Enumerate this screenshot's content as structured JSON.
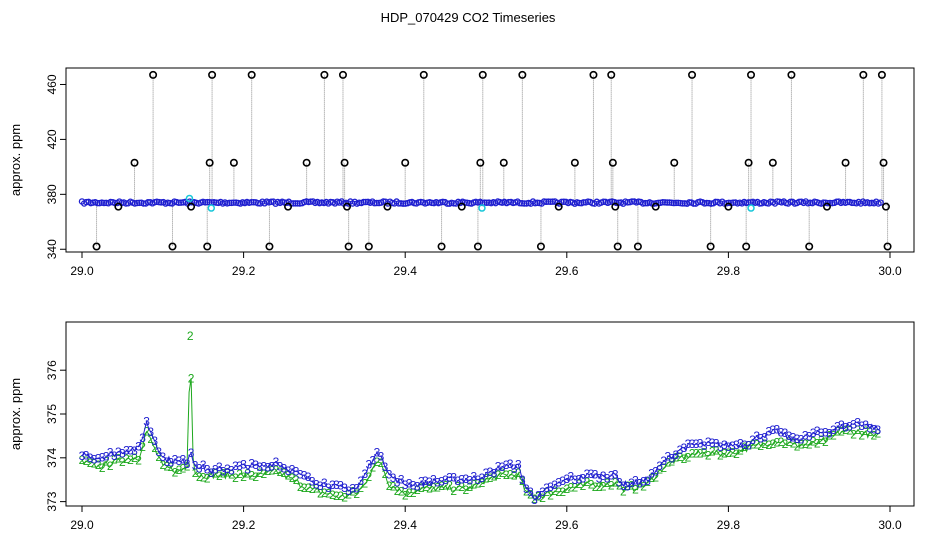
{
  "title": "HDP_070429  CO2 Timeseries",
  "colors": {
    "level3": "#1f1fd0",
    "level2": "#1ea81e",
    "cyan": "#19c7d9",
    "spike_line": "#909090",
    "outlier": "#000000"
  },
  "chart_data": [
    {
      "type": "scatter",
      "ylabel": "approx. ppm",
      "xlim": [
        29.0,
        30.0
      ],
      "ylim": [
        338,
        472
      ],
      "xticks": [
        "29.0",
        "29.2",
        "29.4",
        "29.6",
        "29.8",
        "30.0"
      ],
      "yticks": [
        "340",
        "380",
        "420",
        "460"
      ],
      "baseline_ppm": 374,
      "outliers": [
        {
          "x": 29.018,
          "y": 342
        },
        {
          "x": 29.045,
          "y": 371
        },
        {
          "x": 29.065,
          "y": 403
        },
        {
          "x": 29.088,
          "y": 467
        },
        {
          "x": 29.112,
          "y": 342
        },
        {
          "x": 29.135,
          "y": 371
        },
        {
          "x": 29.155,
          "y": 342
        },
        {
          "x": 29.158,
          "y": 403
        },
        {
          "x": 29.161,
          "y": 467
        },
        {
          "x": 29.188,
          "y": 403
        },
        {
          "x": 29.21,
          "y": 467
        },
        {
          "x": 29.232,
          "y": 342
        },
        {
          "x": 29.255,
          "y": 371
        },
        {
          "x": 29.278,
          "y": 403
        },
        {
          "x": 29.3,
          "y": 467
        },
        {
          "x": 29.323,
          "y": 467
        },
        {
          "x": 29.325,
          "y": 403
        },
        {
          "x": 29.328,
          "y": 371
        },
        {
          "x": 29.33,
          "y": 342
        },
        {
          "x": 29.355,
          "y": 342
        },
        {
          "x": 29.378,
          "y": 371
        },
        {
          "x": 29.4,
          "y": 403
        },
        {
          "x": 29.423,
          "y": 467
        },
        {
          "x": 29.445,
          "y": 342
        },
        {
          "x": 29.47,
          "y": 371
        },
        {
          "x": 29.49,
          "y": 342
        },
        {
          "x": 29.493,
          "y": 403
        },
        {
          "x": 29.496,
          "y": 467
        },
        {
          "x": 29.522,
          "y": 403
        },
        {
          "x": 29.545,
          "y": 467
        },
        {
          "x": 29.568,
          "y": 342
        },
        {
          "x": 29.59,
          "y": 371
        },
        {
          "x": 29.61,
          "y": 403
        },
        {
          "x": 29.633,
          "y": 467
        },
        {
          "x": 29.655,
          "y": 467
        },
        {
          "x": 29.657,
          "y": 403
        },
        {
          "x": 29.66,
          "y": 371
        },
        {
          "x": 29.663,
          "y": 342
        },
        {
          "x": 29.688,
          "y": 342
        },
        {
          "x": 29.71,
          "y": 371
        },
        {
          "x": 29.733,
          "y": 403
        },
        {
          "x": 29.755,
          "y": 467
        },
        {
          "x": 29.778,
          "y": 342
        },
        {
          "x": 29.8,
          "y": 371
        },
        {
          "x": 29.822,
          "y": 342
        },
        {
          "x": 29.825,
          "y": 403
        },
        {
          "x": 29.828,
          "y": 467
        },
        {
          "x": 29.855,
          "y": 403
        },
        {
          "x": 29.878,
          "y": 467
        },
        {
          "x": 29.9,
          "y": 342
        },
        {
          "x": 29.922,
          "y": 371
        },
        {
          "x": 29.945,
          "y": 403
        },
        {
          "x": 29.967,
          "y": 467
        },
        {
          "x": 29.99,
          "y": 467
        },
        {
          "x": 29.992,
          "y": 403
        },
        {
          "x": 29.995,
          "y": 371
        },
        {
          "x": 29.997,
          "y": 342
        }
      ],
      "cyan_points": [
        {
          "x": 29.133,
          "y": 377
        },
        {
          "x": 29.16,
          "y": 370
        },
        {
          "x": 29.495,
          "y": 370
        },
        {
          "x": 29.828,
          "y": 370
        }
      ]
    },
    {
      "type": "line",
      "ylabel": "approx. ppm",
      "xlim": [
        29.0,
        30.0
      ],
      "ylim": [
        372.9,
        377.1
      ],
      "xticks": [
        "29.0",
        "29.2",
        "29.4",
        "29.6",
        "29.8",
        "30.0"
      ],
      "yticks": [
        "373",
        "374",
        "375",
        "376"
      ],
      "series": [
        {
          "marker": "3",
          "x": [
            29.0,
            29.02,
            29.04,
            29.06,
            29.07,
            29.08,
            29.1,
            29.12,
            29.13,
            29.134,
            29.138,
            29.145,
            29.16,
            29.2,
            29.22,
            29.24,
            29.26,
            29.28,
            29.3,
            29.32,
            29.34,
            29.35,
            29.36,
            29.37,
            29.38,
            29.4,
            29.42,
            29.45,
            29.48,
            29.5,
            29.52,
            29.54,
            29.55,
            29.56,
            29.58,
            29.6,
            29.63,
            29.66,
            29.67,
            29.68,
            29.7,
            29.72,
            29.74,
            29.76,
            29.8,
            29.82,
            29.84,
            29.86,
            29.88,
            29.9,
            29.92,
            29.94,
            29.96,
            29.98,
            29.99
          ],
          "y": [
            374.1,
            374.0,
            374.1,
            374.2,
            374.2,
            374.8,
            374.0,
            373.9,
            373.9,
            374.2,
            373.9,
            373.8,
            373.7,
            373.8,
            373.8,
            373.9,
            373.7,
            373.5,
            373.4,
            373.3,
            373.3,
            373.6,
            374.0,
            374.1,
            373.6,
            373.4,
            373.4,
            373.5,
            373.5,
            373.6,
            373.8,
            373.8,
            373.3,
            373.1,
            373.3,
            373.5,
            373.6,
            373.6,
            373.4,
            373.4,
            373.5,
            373.9,
            374.2,
            374.3,
            374.3,
            374.3,
            374.5,
            374.6,
            374.4,
            374.5,
            374.6,
            374.7,
            374.8,
            374.7,
            374.6
          ]
        },
        {
          "marker": "2",
          "x": [
            29.0,
            29.02,
            29.04,
            29.06,
            29.07,
            29.08,
            29.1,
            29.12,
            29.13,
            29.134,
            29.138,
            29.145,
            29.16,
            29.2,
            29.22,
            29.24,
            29.26,
            29.28,
            29.3,
            29.32,
            29.34,
            29.35,
            29.36,
            29.37,
            29.38,
            29.4,
            29.42,
            29.45,
            29.48,
            29.5,
            29.52,
            29.54,
            29.55,
            29.56,
            29.58,
            29.6,
            29.63,
            29.66,
            29.67,
            29.68,
            29.7,
            29.72,
            29.74,
            29.76,
            29.8,
            29.82,
            29.84,
            29.86,
            29.88,
            29.9,
            29.92,
            29.94,
            29.96,
            29.98,
            29.99
          ],
          "y": [
            373.9,
            373.8,
            373.9,
            374.0,
            374.0,
            374.6,
            373.8,
            373.7,
            373.8,
            376.6,
            373.7,
            373.6,
            373.6,
            373.6,
            373.6,
            373.7,
            373.5,
            373.3,
            373.2,
            373.1,
            373.2,
            373.4,
            373.8,
            373.9,
            373.4,
            373.2,
            373.3,
            373.3,
            373.3,
            373.5,
            373.6,
            373.6,
            373.2,
            373.1,
            373.2,
            373.3,
            373.4,
            373.4,
            373.3,
            373.3,
            373.4,
            373.8,
            374.0,
            374.1,
            374.1,
            374.2,
            374.3,
            374.4,
            374.3,
            374.3,
            374.4,
            374.6,
            374.6,
            374.5,
            374.5
          ]
        }
      ]
    }
  ]
}
